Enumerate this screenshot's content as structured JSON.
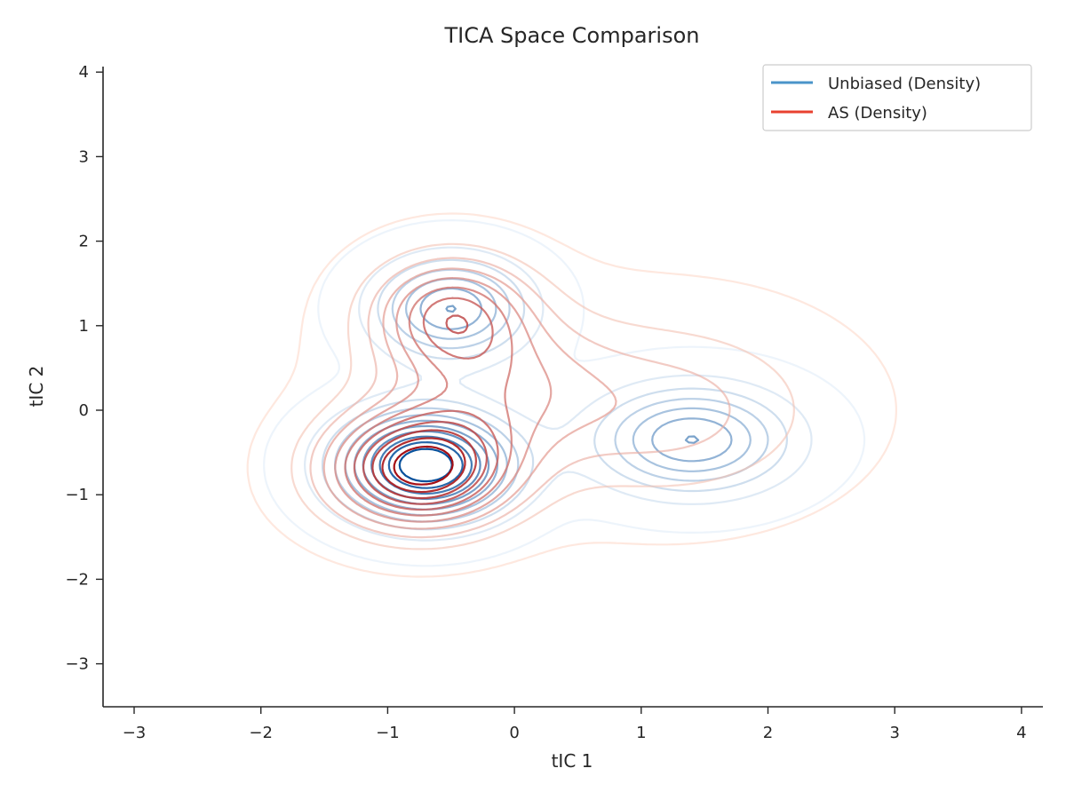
{
  "chart_data": {
    "type": "contour",
    "title": "TICA Space Comparison",
    "xlabel": "tIC 1",
    "ylabel": "tIC 2",
    "xlim": [
      -3.25,
      4.2
    ],
    "ylim": [
      -3.5,
      4.2
    ],
    "xticks": [
      -3,
      -2,
      -1,
      0,
      1,
      2,
      3,
      4
    ],
    "yticks": [
      -3,
      -2,
      -1,
      0,
      1,
      2,
      3,
      4
    ],
    "xtick_labels": [
      "−3",
      "−2",
      "−1",
      "0",
      "1",
      "2",
      "3",
      "4"
    ],
    "ytick_labels": [
      "−3",
      "−2",
      "−1",
      "0",
      "1",
      "2",
      "3",
      "4"
    ],
    "grid": false,
    "legend_position": "top-right",
    "series": [
      {
        "name": "Unbiased (Density)",
        "legend_color": "#4a94c9",
        "color_light": "#deebf7",
        "color_dark": "#08519c",
        "components": [
          {
            "center": [
              -0.7,
              -0.65
            ],
            "sigma": [
              0.45,
              0.42
            ],
            "weight": 1.0
          },
          {
            "center": [
              -0.5,
              1.2
            ],
            "sigma": [
              0.4,
              0.4
            ],
            "weight": 0.55
          },
          {
            "center": [
              1.4,
              -0.35
            ],
            "sigma": [
              0.52,
              0.42
            ],
            "weight": 0.55
          }
        ]
      },
      {
        "name": "AS (Density)",
        "legend_color": "#e8412f",
        "color_light": "#fdd5c5",
        "color_dark": "#a50f15",
        "components": [
          {
            "center": [
              -0.75,
              -0.7
            ],
            "sigma": [
              0.48,
              0.45
            ],
            "weight": 1.0
          },
          {
            "center": [
              -0.5,
              1.15
            ],
            "sigma": [
              0.42,
              0.45
            ],
            "weight": 0.55
          },
          {
            "center": [
              -0.2,
              0.3
            ],
            "sigma": [
              0.6,
              0.6
            ],
            "weight": 0.35
          },
          {
            "center": [
              1.2,
              0.0
            ],
            "sigma": [
              0.8,
              0.7
            ],
            "weight": 0.25
          }
        ]
      }
    ]
  }
}
